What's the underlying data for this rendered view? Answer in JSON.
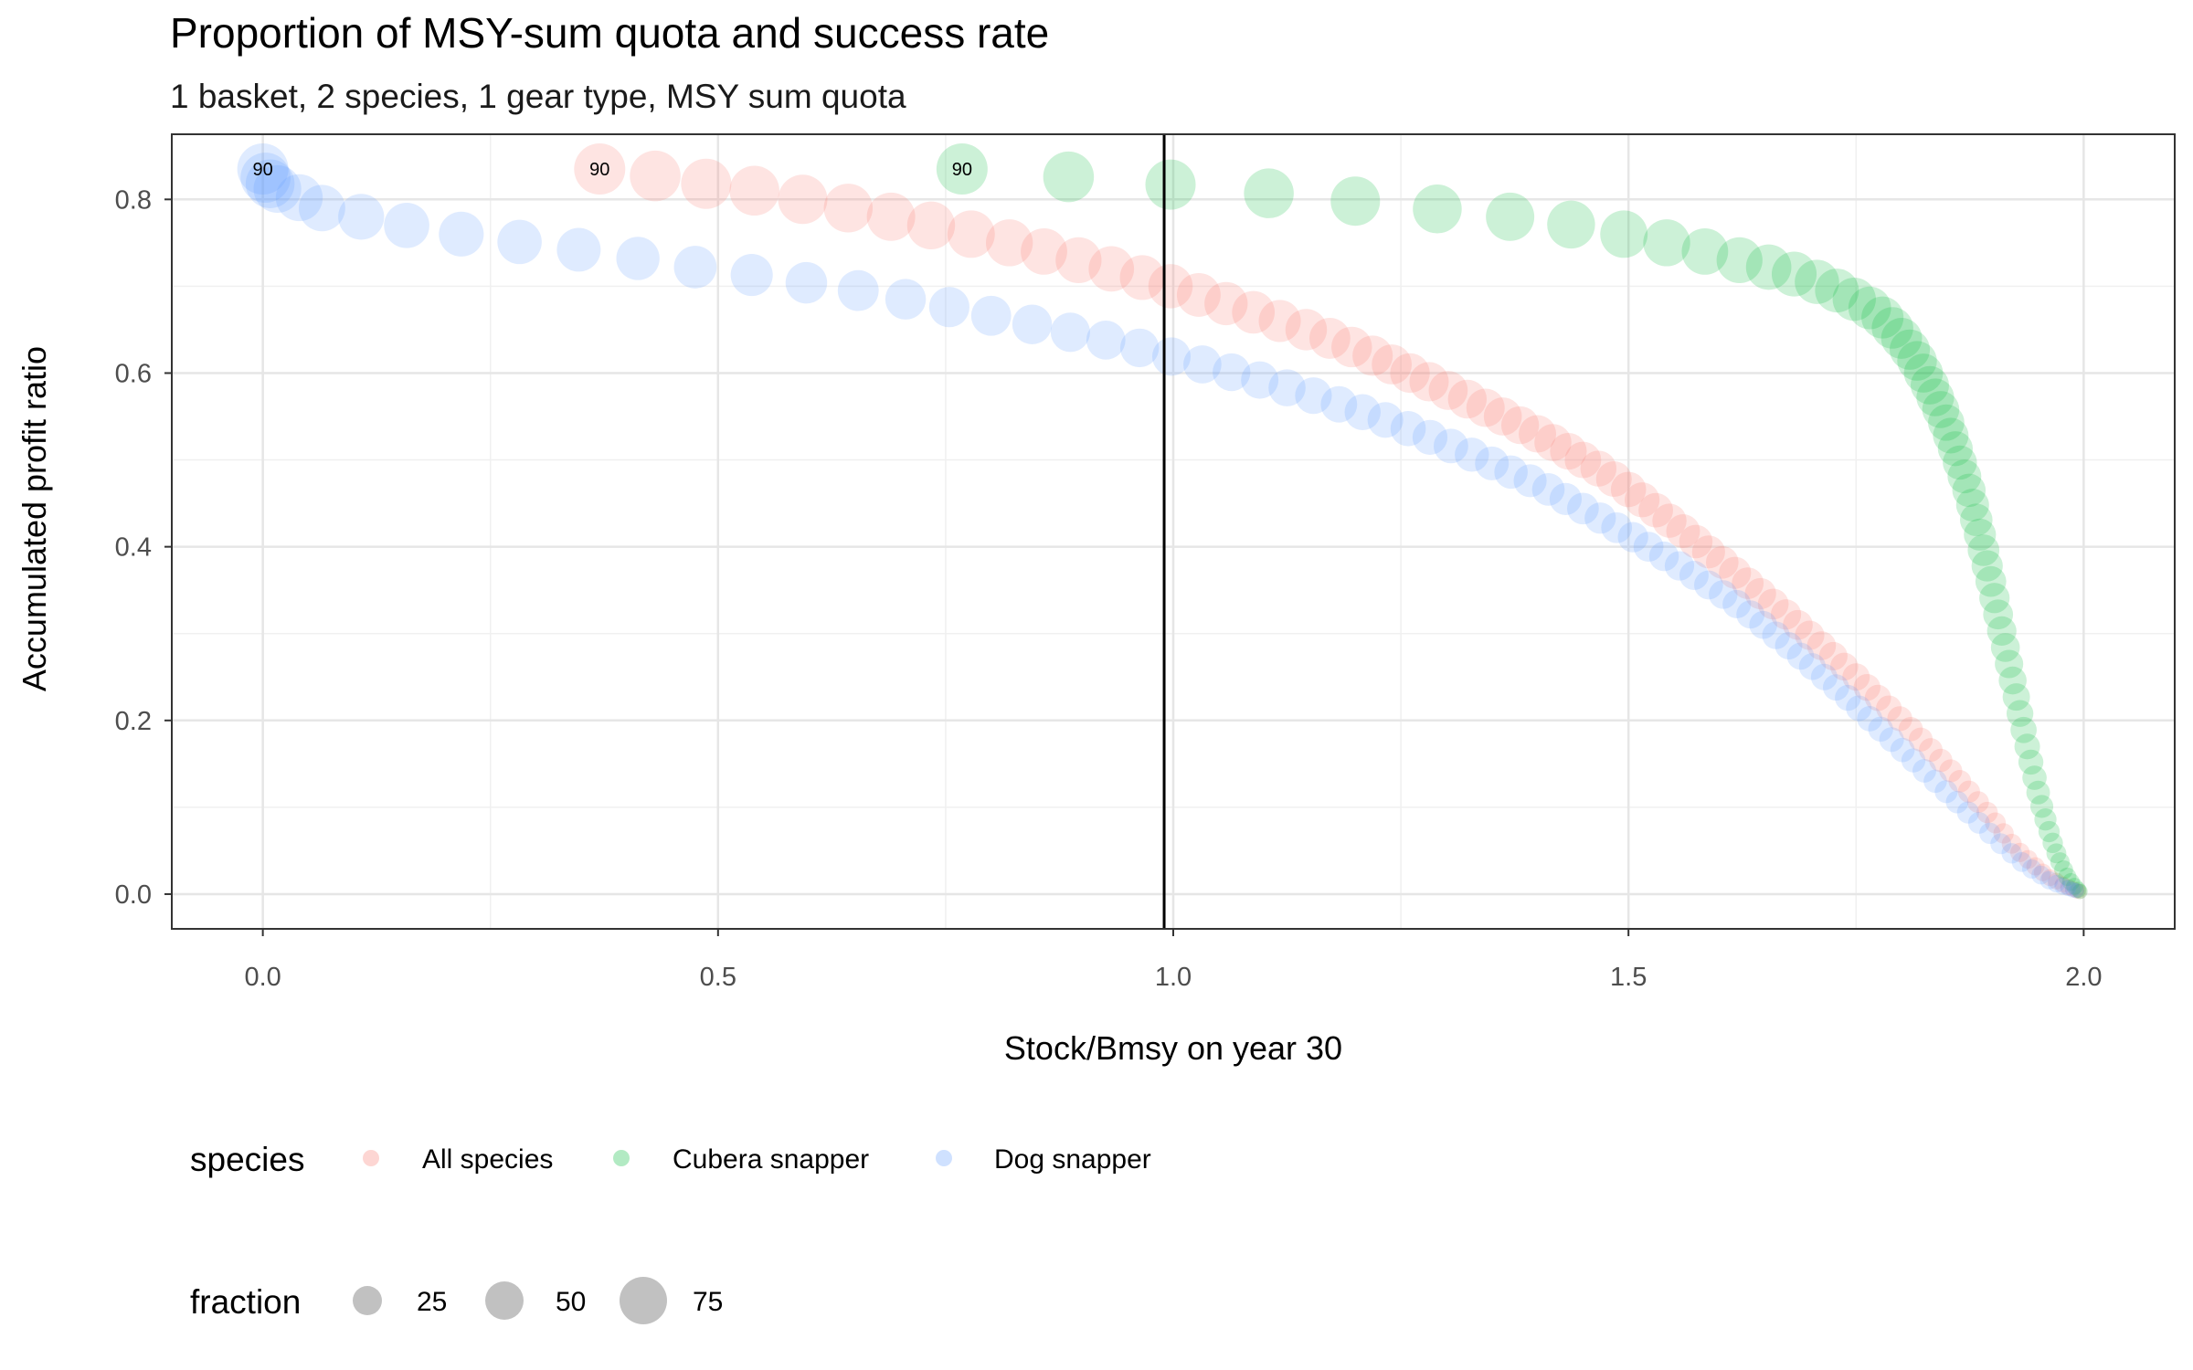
{
  "chart_data": {
    "type": "scatter",
    "title": "Proportion of MSY-sum quota and success rate",
    "subtitle": "1 basket, 2 species, 1 gear type, MSY sum quota",
    "xlabel": "Stock/Bmsy on year 30",
    "ylabel": "Accumulated profit ratio",
    "xlim": [
      -0.1,
      2.1
    ],
    "ylim": [
      -0.04,
      0.875
    ],
    "xticks": [
      "0.0",
      "0.5",
      "1.0",
      "1.5",
      "2.0"
    ],
    "xtick_values": [
      0,
      0.5,
      1.0,
      1.5,
      2.0
    ],
    "yticks": [
      "0.0",
      "0.2",
      "0.4",
      "0.6",
      "0.8"
    ],
    "ytick_values": [
      0,
      0.2,
      0.4,
      0.6,
      0.8
    ],
    "vline_x": 0.99,
    "grid": true,
    "legend_position": "bottom",
    "size_legend": {
      "title": "fraction",
      "values": [
        25,
        50,
        75
      ],
      "labels": [
        "25",
        "50",
        "75"
      ]
    },
    "series": [
      {
        "name": "All species",
        "color": "#F8766D",
        "label": "90",
        "label_at": {
          "x": 0.37,
          "y": 0.835
        },
        "x": [
          0.37,
          0.431,
          0.487,
          0.54,
          0.593,
          0.643,
          0.69,
          0.734,
          0.778,
          0.82,
          0.858,
          0.896,
          0.932,
          0.966,
          0.997,
          1.028,
          1.058,
          1.088,
          1.117,
          1.146,
          1.172,
          1.196,
          1.219,
          1.24,
          1.26,
          1.281,
          1.302,
          1.323,
          1.343,
          1.362,
          1.381,
          1.4,
          1.417,
          1.434,
          1.45,
          1.467,
          1.484,
          1.5,
          1.515,
          1.53,
          1.545,
          1.56,
          1.574,
          1.588,
          1.603,
          1.617,
          1.631,
          1.645,
          1.659,
          1.673,
          1.686,
          1.699,
          1.712,
          1.725,
          1.737,
          1.75,
          1.762,
          1.774,
          1.786,
          1.798,
          1.81,
          1.821,
          1.832,
          1.843,
          1.854,
          1.864,
          1.874,
          1.884,
          1.894,
          1.903,
          1.912,
          1.921,
          1.93,
          1.939,
          1.947,
          1.955,
          1.963,
          1.97,
          1.977,
          1.983,
          1.988,
          1.992,
          1.995
        ],
        "y": [
          0.835,
          0.827,
          0.818,
          0.81,
          0.8,
          0.79,
          0.78,
          0.77,
          0.76,
          0.75,
          0.74,
          0.73,
          0.72,
          0.71,
          0.7,
          0.69,
          0.68,
          0.67,
          0.66,
          0.65,
          0.64,
          0.63,
          0.62,
          0.61,
          0.6,
          0.59,
          0.58,
          0.57,
          0.56,
          0.55,
          0.54,
          0.53,
          0.52,
          0.51,
          0.5,
          0.49,
          0.478,
          0.466,
          0.454,
          0.442,
          0.43,
          0.418,
          0.406,
          0.394,
          0.382,
          0.37,
          0.358,
          0.346,
          0.334,
          0.322,
          0.31,
          0.298,
          0.286,
          0.274,
          0.262,
          0.25,
          0.238,
          0.226,
          0.214,
          0.202,
          0.19,
          0.178,
          0.166,
          0.154,
          0.142,
          0.13,
          0.118,
          0.106,
          0.094,
          0.082,
          0.07,
          0.058,
          0.048,
          0.04,
          0.032,
          0.025,
          0.019,
          0.015,
          0.011,
          0.008,
          0.006,
          0.004,
          0.003
        ],
        "fraction": [
          90,
          88,
          86,
          84,
          82,
          80,
          78,
          76,
          74,
          72,
          70,
          68,
          66,
          64,
          62,
          60,
          58,
          56,
          54,
          52,
          50,
          49,
          48,
          47,
          46,
          45,
          44,
          43,
          42,
          41,
          40,
          39,
          38,
          37,
          36,
          35,
          34,
          33,
          32,
          31,
          30,
          29,
          28,
          27,
          26,
          25,
          24,
          23,
          22,
          21,
          20,
          19,
          18,
          17,
          16,
          15,
          14,
          13,
          12,
          11,
          10,
          9.5,
          9,
          8.5,
          8,
          7.5,
          7,
          6.5,
          6,
          5.5,
          5,
          4.5,
          4,
          3.5,
          3,
          2.5,
          2,
          1.8,
          1.6,
          1.4,
          1.2,
          1.1,
          1
        ]
      },
      {
        "name": "Cubera snapper",
        "color": "#00BA38",
        "label": "90",
        "label_at": {
          "x": 0.768,
          "y": 0.835
        },
        "x": [
          0.768,
          0.885,
          0.997,
          1.105,
          1.2,
          1.29,
          1.37,
          1.437,
          1.495,
          1.542,
          1.584,
          1.622,
          1.654,
          1.682,
          1.707,
          1.729,
          1.748,
          1.765,
          1.779,
          1.79,
          1.8,
          1.809,
          1.817,
          1.824,
          1.831,
          1.837,
          1.843,
          1.849,
          1.854,
          1.859,
          1.864,
          1.869,
          1.874,
          1.878,
          1.882,
          1.886,
          1.89,
          1.894,
          1.898,
          1.902,
          1.906,
          1.91,
          1.914,
          1.918,
          1.922,
          1.926,
          1.93,
          1.934,
          1.938,
          1.942,
          1.946,
          1.95,
          1.954,
          1.958,
          1.962,
          1.966,
          1.97,
          1.974,
          1.978,
          1.982,
          1.986,
          1.99,
          1.994,
          1.996
        ],
        "y": [
          0.835,
          0.826,
          0.817,
          0.807,
          0.798,
          0.789,
          0.78,
          0.771,
          0.76,
          0.75,
          0.74,
          0.73,
          0.722,
          0.714,
          0.705,
          0.695,
          0.685,
          0.675,
          0.664,
          0.652,
          0.64,
          0.627,
          0.614,
          0.6,
          0.586,
          0.572,
          0.558,
          0.543,
          0.528,
          0.513,
          0.497,
          0.481,
          0.465,
          0.448,
          0.431,
          0.414,
          0.396,
          0.378,
          0.36,
          0.341,
          0.322,
          0.303,
          0.284,
          0.265,
          0.246,
          0.227,
          0.208,
          0.189,
          0.17,
          0.152,
          0.134,
          0.117,
          0.101,
          0.086,
          0.072,
          0.059,
          0.047,
          0.037,
          0.028,
          0.02,
          0.014,
          0.009,
          0.005,
          0.003
        ],
        "fraction": [
          90,
          88,
          86,
          84,
          82,
          80,
          78,
          76,
          74,
          72,
          70,
          68,
          66,
          64,
          62,
          60,
          58,
          56,
          54,
          52,
          50,
          48,
          46,
          44,
          42,
          40,
          38,
          36,
          34,
          32,
          30,
          29,
          28,
          27,
          26,
          25,
          24,
          23,
          22,
          21,
          20,
          19,
          18,
          17,
          16,
          15,
          14,
          13,
          12,
          11,
          10,
          9,
          8,
          7,
          6,
          5,
          4.5,
          4,
          3.5,
          3,
          2.5,
          2,
          1.5,
          1
        ]
      },
      {
        "name": "Dog snapper",
        "color": "#619CFF",
        "label": "90",
        "label_at": {
          "x": 0.0,
          "y": 0.835
        },
        "x": [
          0.0,
          0.003,
          0.008,
          0.016,
          0.04,
          0.065,
          0.108,
          0.158,
          0.218,
          0.282,
          0.347,
          0.412,
          0.475,
          0.537,
          0.597,
          0.654,
          0.706,
          0.754,
          0.8,
          0.845,
          0.887,
          0.926,
          0.963,
          0.998,
          1.032,
          1.064,
          1.095,
          1.125,
          1.154,
          1.182,
          1.208,
          1.233,
          1.258,
          1.282,
          1.305,
          1.328,
          1.35,
          1.371,
          1.392,
          1.412,
          1.431,
          1.45,
          1.469,
          1.487,
          1.505,
          1.522,
          1.539,
          1.556,
          1.572,
          1.588,
          1.604,
          1.619,
          1.634,
          1.648,
          1.662,
          1.676,
          1.689,
          1.702,
          1.715,
          1.728,
          1.741,
          1.753,
          1.765,
          1.777,
          1.789,
          1.801,
          1.813,
          1.825,
          1.837,
          1.849,
          1.861,
          1.873,
          1.885,
          1.897,
          1.909,
          1.921,
          1.932,
          1.943,
          1.953,
          1.962,
          1.97,
          1.977,
          1.983,
          1.988,
          1.992
        ],
        "y": [
          0.835,
          0.825,
          0.818,
          0.812,
          0.802,
          0.79,
          0.78,
          0.77,
          0.76,
          0.751,
          0.742,
          0.732,
          0.722,
          0.713,
          0.704,
          0.695,
          0.685,
          0.676,
          0.666,
          0.656,
          0.647,
          0.638,
          0.629,
          0.619,
          0.61,
          0.601,
          0.592,
          0.583,
          0.574,
          0.564,
          0.555,
          0.546,
          0.536,
          0.526,
          0.516,
          0.506,
          0.496,
          0.486,
          0.476,
          0.466,
          0.455,
          0.444,
          0.433,
          0.422,
          0.411,
          0.4,
          0.389,
          0.378,
          0.367,
          0.356,
          0.345,
          0.334,
          0.322,
          0.31,
          0.298,
          0.286,
          0.274,
          0.262,
          0.25,
          0.238,
          0.226,
          0.214,
          0.202,
          0.19,
          0.178,
          0.166,
          0.154,
          0.142,
          0.13,
          0.118,
          0.106,
          0.094,
          0.082,
          0.07,
          0.058,
          0.047,
          0.037,
          0.029,
          0.022,
          0.016,
          0.012,
          0.009,
          0.007,
          0.005,
          0.004
        ],
        "fraction": [
          90,
          85,
          80,
          75,
          72,
          70,
          68,
          66,
          64,
          62,
          60,
          58,
          56,
          54,
          52,
          50,
          49,
          48,
          47,
          46,
          45,
          44,
          43,
          42,
          41,
          40,
          39,
          38,
          37,
          36,
          35,
          34,
          33,
          32,
          31,
          30,
          29,
          28,
          27,
          26,
          25,
          24,
          23,
          22,
          21,
          20,
          19.5,
          19,
          18.5,
          18,
          17.5,
          17,
          16.5,
          16,
          15.5,
          15,
          14.5,
          14,
          13.5,
          13,
          12.5,
          12,
          11.5,
          11,
          10.5,
          10,
          9.5,
          9,
          8.5,
          8,
          7.5,
          7,
          6.5,
          6,
          5.5,
          5,
          4.5,
          4,
          3.5,
          3,
          2.5,
          2,
          1.5,
          1.2,
          1
        ]
      }
    ]
  },
  "legend": {
    "species_title": "species",
    "species_items": [
      "All species",
      "Cubera snapper",
      "Dog snapper"
    ],
    "fraction_title": "fraction",
    "fraction_labels": [
      "25",
      "50",
      "75"
    ]
  }
}
